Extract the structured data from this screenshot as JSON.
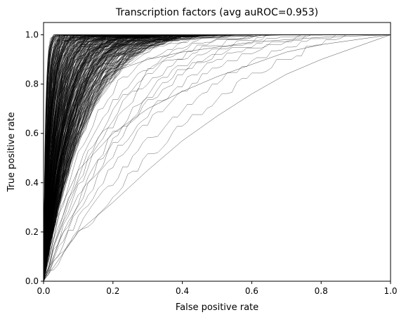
{
  "chart_data": {
    "type": "line",
    "title": "Transcription factors (avg auROC=0.953)",
    "xlabel": "False positive rate",
    "ylabel": "True positive rate",
    "xlim": [
      0,
      1
    ],
    "ylim": [
      0,
      1.05
    ],
    "xticks": [
      "0.0",
      "0.2",
      "0.4",
      "0.6",
      "0.8",
      "1.0"
    ],
    "yticks": [
      "0.0",
      "0.2",
      "0.4",
      "0.6",
      "0.8",
      "1.0"
    ],
    "xtick_values": [
      0,
      0.2,
      0.4,
      0.6,
      0.8,
      1.0
    ],
    "ytick_values": [
      0,
      0.2,
      0.4,
      0.6,
      0.8,
      1.0
    ],
    "grid": false,
    "legend": "none",
    "line_color": "#000000",
    "curve_family": {
      "description": "ROC curves for many transcription factors, rising steeply near x=0 and converging to (1,1)",
      "count_dense": 420,
      "auroc_range_dense": [
        0.88,
        0.995
      ],
      "representative_curves": [
        {
          "name": "",
          "x": [
            0,
            0.01,
            0.03,
            0.06,
            0.1,
            0.2,
            0.3,
            0.5,
            0.7,
            1.0
          ],
          "y": [
            0.0,
            0.55,
            0.75,
            0.85,
            0.9,
            0.95,
            0.97,
            0.99,
            1.0,
            1.0
          ]
        },
        {
          "name": "",
          "x": [
            0,
            0.02,
            0.05,
            0.1,
            0.2,
            0.3,
            0.4,
            0.6,
            0.8,
            1.0
          ],
          "y": [
            0.0,
            0.4,
            0.6,
            0.75,
            0.85,
            0.9,
            0.93,
            0.97,
            0.99,
            1.0
          ]
        },
        {
          "name": "",
          "x": [
            0,
            0.05,
            0.1,
            0.2,
            0.3,
            0.4,
            0.5,
            0.6,
            0.7,
            0.8,
            0.9,
            1.0
          ],
          "y": [
            0.0,
            0.3,
            0.45,
            0.6,
            0.7,
            0.77,
            0.83,
            0.88,
            0.93,
            0.96,
            0.98,
            1.0
          ]
        },
        {
          "name": "",
          "x": [
            0,
            0.1,
            0.2,
            0.3,
            0.4,
            0.5,
            0.6,
            0.7,
            0.8,
            0.9,
            1.0
          ],
          "y": [
            0.0,
            0.2,
            0.32,
            0.45,
            0.57,
            0.67,
            0.76,
            0.84,
            0.9,
            0.95,
            1.0
          ]
        }
      ]
    }
  }
}
